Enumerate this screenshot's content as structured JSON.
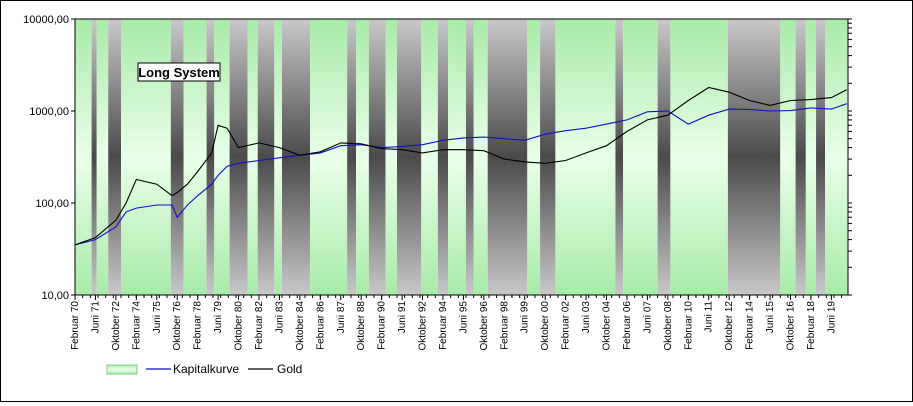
{
  "chart_data": {
    "type": "line",
    "title": "Long System",
    "y_scale": "log",
    "ylim": [
      10,
      10000
    ],
    "y_ticks": [
      "10,00",
      "100,00",
      "1000,00",
      "10000,00"
    ],
    "y_tick_values": [
      10,
      100,
      1000,
      10000
    ],
    "x_range": [
      "1970-02",
      "2020-07"
    ],
    "x_tick_labels": [
      "Februar 70",
      "Juni 71",
      "Oktober 72",
      "Februar 74",
      "Juni 75",
      "Oktober 76",
      "Februar 78",
      "Juni 79",
      "Oktober 80",
      "Februar 82",
      "Juni 83",
      "Oktober 84",
      "Februar 86",
      "Juni 87",
      "Oktober 88",
      "Februar 90",
      "Juni 91",
      "Oktober 92",
      "Februar 94",
      "Juni 95",
      "Oktober 96",
      "Februar 98",
      "Juni 99",
      "Oktober 00",
      "Februar 02",
      "Juni 03",
      "Oktober 04",
      "Februar 06",
      "Juni 07",
      "Oktober 08",
      "Februar 10",
      "Juni 11",
      "Oktober 12",
      "Februar 14",
      "Juni 15",
      "Oktober 16",
      "Februar 18",
      "Juni 19"
    ],
    "x_tick_dates": [
      "1970-02",
      "1971-06",
      "1972-10",
      "1974-02",
      "1975-06",
      "1976-10",
      "1978-02",
      "1979-06",
      "1980-10",
      "1982-02",
      "1983-06",
      "1984-10",
      "1986-02",
      "1987-06",
      "1988-10",
      "1990-02",
      "1991-06",
      "1992-10",
      "1994-02",
      "1995-06",
      "1996-10",
      "1998-02",
      "1999-06",
      "2000-10",
      "2002-02",
      "2003-06",
      "2004-10",
      "2006-02",
      "2007-06",
      "2008-10",
      "2010-02",
      "2011-06",
      "2012-10",
      "2014-02",
      "2015-06",
      "2016-10",
      "2018-02",
      "2019-06"
    ],
    "series": [
      {
        "name": "Kapitalkurve",
        "color": "#1010c8",
        "x": [
          "1970-02",
          "1971-06",
          "1972-10",
          "1973-06",
          "1974-02",
          "1975-06",
          "1976-06",
          "1976-10",
          "1977-06",
          "1978-02",
          "1979-01",
          "1979-06",
          "1980-01",
          "1980-10",
          "1982-02",
          "1983-06",
          "1984-10",
          "1986-02",
          "1987-06",
          "1988-10",
          "1990-02",
          "1991-06",
          "1992-10",
          "1994-02",
          "1995-06",
          "1996-10",
          "1998-02",
          "1999-06",
          "2000-10",
          "2002-02",
          "2003-06",
          "2004-10",
          "2006-02",
          "2007-06",
          "2008-10",
          "2010-02",
          "2011-06",
          "2012-10",
          "2014-02",
          "2015-06",
          "2016-10",
          "2018-02",
          "2019-06",
          "2020-06"
        ],
        "y": [
          35,
          40,
          55,
          80,
          88,
          95,
          95,
          70,
          95,
          120,
          160,
          200,
          250,
          270,
          290,
          310,
          330,
          350,
          420,
          430,
          400,
          410,
          430,
          480,
          510,
          520,
          500,
          480,
          560,
          610,
          650,
          720,
          800,
          980,
          1000,
          720,
          900,
          1050,
          1040,
          1000,
          1010,
          1080,
          1050,
          1200
        ]
      },
      {
        "name": "Gold",
        "color": "#000000",
        "x": [
          "1970-02",
          "1971-06",
          "1972-10",
          "1973-06",
          "1974-02",
          "1975-06",
          "1976-06",
          "1976-10",
          "1977-06",
          "1978-02",
          "1979-01",
          "1979-06",
          "1980-01",
          "1980-10",
          "1982-02",
          "1983-06",
          "1984-10",
          "1986-02",
          "1987-06",
          "1988-10",
          "1990-02",
          "1991-06",
          "1992-10",
          "1994-02",
          "1995-06",
          "1996-10",
          "1998-02",
          "1999-06",
          "2000-10",
          "2002-02",
          "2003-06",
          "2004-10",
          "2006-02",
          "2007-06",
          "2008-10",
          "2010-02",
          "2011-06",
          "2012-10",
          "2014-02",
          "2015-06",
          "2016-10",
          "2018-02",
          "2019-06",
          "2020-06"
        ],
        "y": [
          35,
          42,
          65,
          100,
          180,
          160,
          120,
          130,
          160,
          220,
          350,
          700,
          650,
          400,
          450,
          400,
          330,
          360,
          450,
          440,
          390,
          380,
          350,
          380,
          380,
          370,
          300,
          280,
          270,
          290,
          350,
          420,
          600,
          800,
          900,
          1300,
          1800,
          1600,
          1300,
          1150,
          1300,
          1330,
          1400,
          1700
        ]
      }
    ],
    "legend": {
      "placement": "bottom-left",
      "entries": [
        {
          "label": "",
          "kind": "area",
          "color": "#88d488"
        },
        {
          "label": "Kapitalkurve",
          "kind": "line",
          "color": "#1010c8"
        },
        {
          "label": "Gold",
          "kind": "line",
          "color": "#000000"
        }
      ]
    },
    "background_regimes_note": "Alternating vertical bands mark long (green) vs flat (gray) periods.",
    "regimes": [
      {
        "from": "1970-02",
        "to": "1971-03",
        "state": "long"
      },
      {
        "from": "1971-03",
        "to": "1971-07",
        "state": "flat"
      },
      {
        "from": "1971-07",
        "to": "1972-04",
        "state": "long"
      },
      {
        "from": "1972-04",
        "to": "1973-02",
        "state": "flat"
      },
      {
        "from": "1973-02",
        "to": "1976-05",
        "state": "long"
      },
      {
        "from": "1976-05",
        "to": "1977-03",
        "state": "flat"
      },
      {
        "from": "1977-03",
        "to": "1978-09",
        "state": "long"
      },
      {
        "from": "1978-09",
        "to": "1979-03",
        "state": "flat"
      },
      {
        "from": "1979-03",
        "to": "1980-03",
        "state": "long"
      },
      {
        "from": "1980-03",
        "to": "1981-05",
        "state": "flat"
      },
      {
        "from": "1981-05",
        "to": "1982-01",
        "state": "long"
      },
      {
        "from": "1982-01",
        "to": "1983-02",
        "state": "flat"
      },
      {
        "from": "1983-02",
        "to": "1983-08",
        "state": "long"
      },
      {
        "from": "1983-08",
        "to": "1985-06",
        "state": "flat"
      },
      {
        "from": "1985-06",
        "to": "1987-11",
        "state": "long"
      },
      {
        "from": "1987-11",
        "to": "1988-06",
        "state": "flat"
      },
      {
        "from": "1988-06",
        "to": "1989-04",
        "state": "long"
      },
      {
        "from": "1989-04",
        "to": "1990-05",
        "state": "flat"
      },
      {
        "from": "1990-05",
        "to": "1991-02",
        "state": "long"
      },
      {
        "from": "1991-02",
        "to": "1992-09",
        "state": "flat"
      },
      {
        "from": "1992-09",
        "to": "1993-10",
        "state": "long"
      },
      {
        "from": "1993-10",
        "to": "1994-06",
        "state": "flat"
      },
      {
        "from": "1994-06",
        "to": "1995-08",
        "state": "long"
      },
      {
        "from": "1995-08",
        "to": "1996-02",
        "state": "flat"
      },
      {
        "from": "1996-02",
        "to": "1997-01",
        "state": "long"
      },
      {
        "from": "1997-01",
        "to": "1999-08",
        "state": "flat"
      },
      {
        "from": "1999-08",
        "to": "2000-06",
        "state": "long"
      },
      {
        "from": "2000-06",
        "to": "2001-06",
        "state": "flat"
      },
      {
        "from": "2001-06",
        "to": "2005-05",
        "state": "long"
      },
      {
        "from": "2005-05",
        "to": "2005-11",
        "state": "flat"
      },
      {
        "from": "2005-11",
        "to": "2008-02",
        "state": "long"
      },
      {
        "from": "2008-02",
        "to": "2008-12",
        "state": "flat"
      },
      {
        "from": "2008-12",
        "to": "2012-09",
        "state": "long"
      },
      {
        "from": "2012-09",
        "to": "2016-02",
        "state": "flat"
      },
      {
        "from": "2016-02",
        "to": "2017-02",
        "state": "long"
      },
      {
        "from": "2017-02",
        "to": "2017-10",
        "state": "flat"
      },
      {
        "from": "2017-10",
        "to": "2018-06",
        "state": "long"
      },
      {
        "from": "2018-06",
        "to": "2019-01",
        "state": "flat"
      },
      {
        "from": "2019-01",
        "to": "2020-07",
        "state": "long"
      }
    ]
  }
}
